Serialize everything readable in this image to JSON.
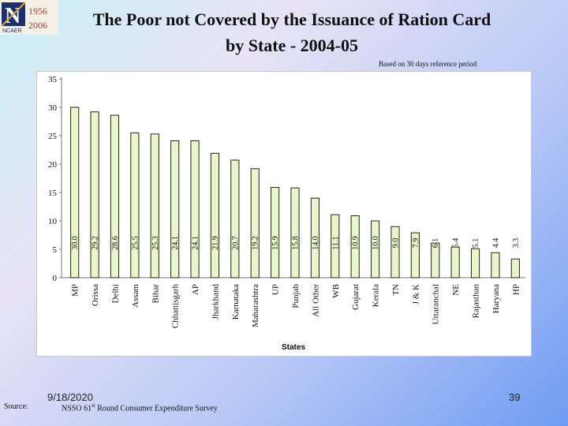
{
  "logo": {
    "letter": "N",
    "brand": "NCAER",
    "year_top": "1956",
    "year_bottom": "2006"
  },
  "title_line1": "The Poor not Covered by the Issuance of Ration Card",
  "title_line2": "by State - 2004-05",
  "reference_note": "Based on 30 days reference period",
  "footer": {
    "source_label": "Source:",
    "date": "9/18/2020",
    "survey_prefix": "NSSO 61",
    "survey_sup": "st",
    "survey_suffix": " Round Consumer Expenditure Survey",
    "page_number": "39"
  },
  "chart_data": {
    "type": "bar",
    "title": "The Poor not Covered by the Issuance of Ration Card by State - 2004-05",
    "xlabel": "States",
    "ylabel": "",
    "ylim": [
      0,
      35
    ],
    "yticks": [
      0,
      5,
      10,
      15,
      20,
      25,
      30,
      35
    ],
    "categories": [
      "MP",
      "Orissa",
      "Delhi",
      "Assam",
      "Bihar",
      "Chhattisgarh",
      "AP",
      "Jharkhand",
      "Karnataka",
      "Maharashtra",
      "UP",
      "Punjab",
      "All Other",
      "WB",
      "Gujarat",
      "Kerala",
      "TN",
      "J & K",
      "Uttaranchal",
      "NE",
      "Rajasthan",
      "Haryana",
      "HP"
    ],
    "values": [
      30.0,
      29.2,
      28.6,
      25.5,
      25.3,
      24.1,
      24.1,
      21.9,
      20.7,
      19.2,
      15.9,
      15.8,
      14.0,
      11.1,
      10.9,
      10.0,
      9.0,
      7.9,
      6.1,
      5.4,
      5.1,
      4.4,
      3.3
    ],
    "bar_color": "#e9f7c8",
    "bar_border": "#222222",
    "grid": false
  }
}
